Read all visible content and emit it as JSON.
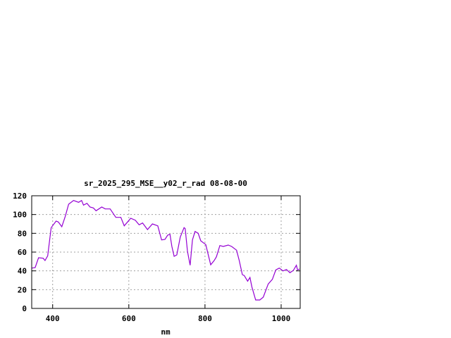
{
  "chart_data": {
    "type": "line",
    "title": "sr_2025_295_MSE__y02_r_rad 08-08-00",
    "xlabel": "nm",
    "ylabel": "",
    "xlim": [
      345,
      1050
    ],
    "ylim": [
      0,
      120
    ],
    "xticks": [
      400,
      600,
      800,
      1000
    ],
    "yticks": [
      0,
      20,
      40,
      60,
      80,
      100,
      120
    ],
    "grid": true,
    "line_color": "#9400d3",
    "series": [
      {
        "x": [
          346,
          354,
          363,
          375,
          380,
          387,
          396,
          409,
          415,
          424,
          433,
          442,
          455,
          468,
          476,
          481,
          490,
          498,
          507,
          514,
          529,
          538,
          551,
          566,
          579,
          588,
          605,
          617,
          627,
          636,
          649,
          662,
          676,
          686,
          695,
          702,
          708,
          713,
          719,
          726,
          735,
          745,
          748,
          754,
          761,
          767,
          774,
          782,
          789,
          802,
          815,
          824,
          830,
          839,
          848,
          861,
          870,
          883,
          890,
          898,
          903,
          912,
          918,
          923,
          933,
          944,
          953,
          966,
          977,
          986,
          995,
          1005,
          1014,
          1023,
          1032,
          1040,
          1043,
          1048
        ],
        "y": [
          43,
          43.5,
          54,
          53.5,
          51,
          56,
          86,
          93,
          92,
          87,
          98,
          111,
          115,
          113,
          115,
          110,
          112,
          108,
          107,
          104,
          108,
          106,
          106,
          97,
          97,
          88,
          96,
          94,
          89,
          91,
          84,
          90,
          88,
          73,
          73.5,
          78,
          79,
          66,
          55.5,
          57,
          76,
          86,
          85,
          61,
          46,
          73,
          82,
          80,
          72,
          68,
          46.5,
          51,
          55,
          67,
          66,
          67.5,
          66,
          62,
          51,
          36,
          35,
          29,
          33,
          23,
          9,
          9,
          12,
          26,
          31,
          41,
          43,
          40,
          41.5,
          38,
          40.5,
          46,
          41,
          42
        ]
      }
    ]
  }
}
